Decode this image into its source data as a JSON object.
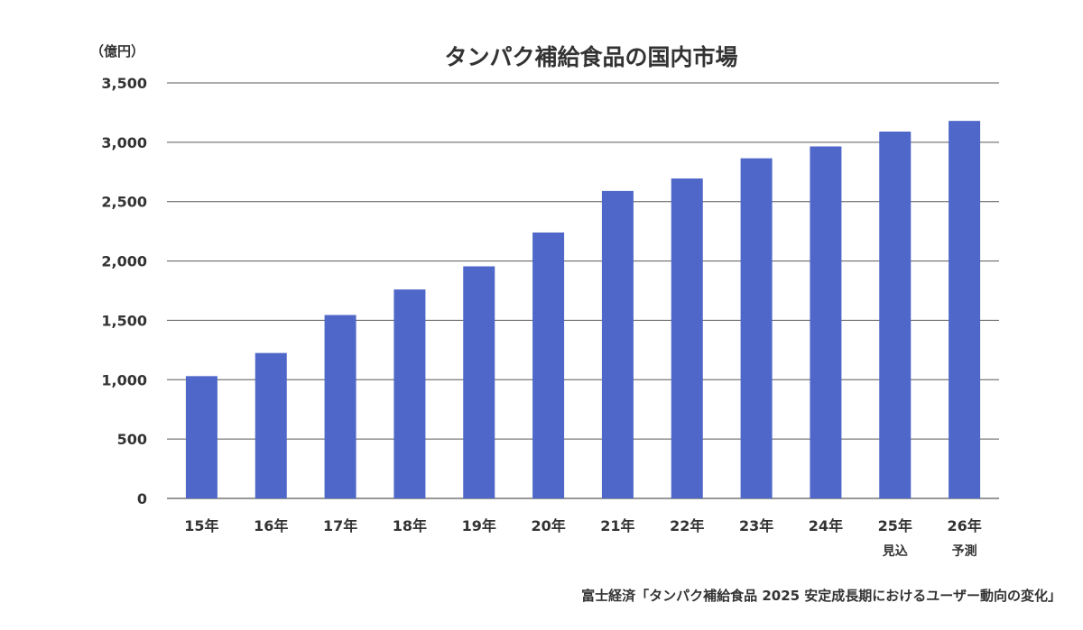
{
  "chart_data": {
    "type": "bar",
    "title": "タンパク補給食品の国内市場",
    "unit_label": "（億円）",
    "categories": [
      "15年",
      "16年",
      "17年",
      "18年",
      "19年",
      "20年",
      "21年",
      "22年",
      "23年",
      "24年",
      "25年",
      "26年"
    ],
    "category_sublabels": [
      "",
      "",
      "",
      "",
      "",
      "",
      "",
      "",
      "",
      "",
      "見込",
      "予測"
    ],
    "series": [
      {
        "name": "タンパク補給食品の国内市場",
        "values": [
          1030,
          1225,
          1545,
          1760,
          1955,
          2240,
          2590,
          2695,
          2865,
          2965,
          3090,
          3180
        ]
      }
    ],
    "ylim": [
      0,
      3500
    ],
    "yticks": [
      0,
      500,
      1000,
      1500,
      2000,
      2500,
      3000,
      3500
    ],
    "ytick_labels": [
      "0",
      "500",
      "1,000",
      "1,500",
      "2,000",
      "2,500",
      "3,000",
      "3,500"
    ],
    "grid": true,
    "bar_color": "#4f67c8",
    "source": "富士経済「タンパク補給食品 2025 安定成長期におけるユーザー動向の変化」"
  }
}
